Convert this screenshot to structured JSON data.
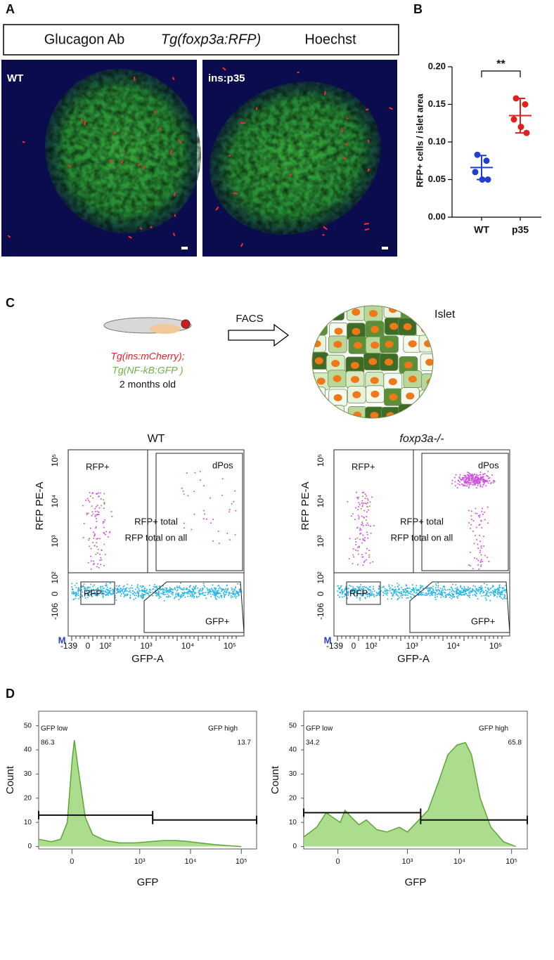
{
  "panel_labels": [
    "A",
    "B",
    "C",
    "D"
  ],
  "panel_a": {
    "legend": [
      "Glucagon Ab",
      "Tg(foxp3a:RFP)",
      "Hoechst"
    ],
    "images": [
      "WT",
      "ins:p35"
    ]
  },
  "panel_c": {
    "fish_labels": [
      "Tg(ins:mCherry);",
      "Tg(NF-kB:GFP )",
      "2 months old"
    ],
    "arrow_label": "FACS",
    "islet_label": "Islet",
    "flow_plots": [
      {
        "title": "WT",
        "y_label": "RFP PE-A",
        "x_label": "GFP-A",
        "y_ticks": [
          "10⁵",
          "10⁴",
          "10³",
          "10²",
          "0",
          "-106"
        ],
        "x_ticks": [
          "-139",
          "0",
          "10²",
          "10³",
          "10⁴",
          "10⁵"
        ],
        "gates": [
          "RFP+",
          "dPos",
          "RFP+ total",
          "RFP total on all",
          "RFP-",
          "GFP+"
        ],
        "marker": "M"
      },
      {
        "title": "foxp3a-/-",
        "y_label": "RFP PE-A",
        "x_label": "GFP-A",
        "y_ticks": [
          "10⁵",
          "10⁴",
          "10³",
          "10²",
          "0",
          "-106"
        ],
        "x_ticks": [
          "-139",
          "0",
          "10²",
          "10³",
          "10⁴",
          "10⁵"
        ],
        "gates": [
          "RFP+",
          "dPos",
          "RFP+ total",
          "RFP total on all",
          "RFP-",
          "GFP+"
        ],
        "marker": "M"
      }
    ]
  },
  "chart_data": [
    {
      "type": "scatter",
      "y_label": "RFP+ cells / islet area",
      "annotation": "**",
      "categories": [
        "WT",
        "p35"
      ],
      "values": [
        [
          0.083,
          0.075,
          0.06,
          0.05,
          0.05
        ],
        [
          0.158,
          0.15,
          0.13,
          0.12,
          0.112
        ]
      ],
      "colors": [
        "#1f3fcf",
        "#e0201c"
      ],
      "means": [
        0.066,
        0.135
      ],
      "sd": [
        0.016,
        0.023
      ],
      "ylim": [
        0,
        0.2
      ],
      "yticks": [
        {
          "value": 0,
          "label": "0.00"
        },
        {
          "value": 0.05,
          "label": "0.05"
        },
        {
          "value": 0.1,
          "label": "0.10"
        },
        {
          "value": 0.15,
          "label": "0.15"
        },
        {
          "value": 0.2,
          "label": "0.20"
        }
      ]
    },
    {
      "type": "area",
      "x_label": "GFP",
      "y_label": "Count",
      "color": "#9ed67a",
      "xscale": "biexponential",
      "x": [
        -200,
        -100,
        -50,
        -20,
        0,
        10,
        30,
        60,
        100,
        200,
        400,
        800,
        1500,
        3000,
        5000,
        8000,
        15000,
        30000,
        60000,
        100000
      ],
      "values": [
        3,
        2,
        3,
        10,
        35,
        44,
        30,
        12,
        5,
        2.5,
        1.5,
        1.5,
        2,
        2.5,
        2.5,
        2.2,
        1.5,
        0.8,
        0.3,
        0
      ],
      "xlim": [
        -200,
        200000
      ],
      "ylim": [
        -1,
        56
      ],
      "xticks": [
        0,
        {
          "value": 1000,
          "label": "10³"
        },
        {
          "value": 10000,
          "label": "10⁴"
        },
        {
          "value": 100000,
          "label": "10⁵"
        }
      ],
      "yticks": [
        0,
        10,
        20,
        30,
        40,
        50
      ],
      "gates": [
        {
          "name": "GFP low",
          "percent": 86.3,
          "x": [
            -200,
            1800
          ],
          "y": 13
        },
        {
          "name": "GFP high",
          "percent": 13.7,
          "x": [
            1800,
            200000
          ],
          "y": 11
        }
      ]
    },
    {
      "type": "area",
      "x_label": "GFP",
      "y_label": "Count",
      "color": "#9ed67a",
      "xscale": "biexponential",
      "x": [
        -200,
        -100,
        -50,
        -20,
        10,
        30,
        60,
        100,
        150,
        250,
        400,
        700,
        1000,
        1500,
        2500,
        4000,
        6000,
        9000,
        13000,
        17000,
        25000,
        40000,
        70000,
        120000
      ],
      "values": [
        4,
        8,
        14,
        12,
        10,
        15,
        12,
        9,
        11,
        7,
        6,
        8,
        6,
        10,
        15,
        27,
        38,
        42,
        43,
        38,
        20,
        8,
        2,
        0
      ],
      "xlim": [
        -200,
        200000
      ],
      "ylim": [
        -1,
        56
      ],
      "xticks": [
        0,
        {
          "value": 1000,
          "label": "10³"
        },
        {
          "value": 10000,
          "label": "10⁴"
        },
        {
          "value": 100000,
          "label": "10⁵"
        }
      ],
      "yticks": [
        0,
        10,
        20,
        30,
        40,
        50
      ],
      "gates": [
        {
          "name": "GFP low",
          "percent": 34.2,
          "x": [
            -200,
            1800
          ],
          "y": 14
        },
        {
          "name": "GFP high",
          "percent": 65.8,
          "x": [
            1800,
            200000
          ],
          "y": 11
        }
      ]
    }
  ]
}
